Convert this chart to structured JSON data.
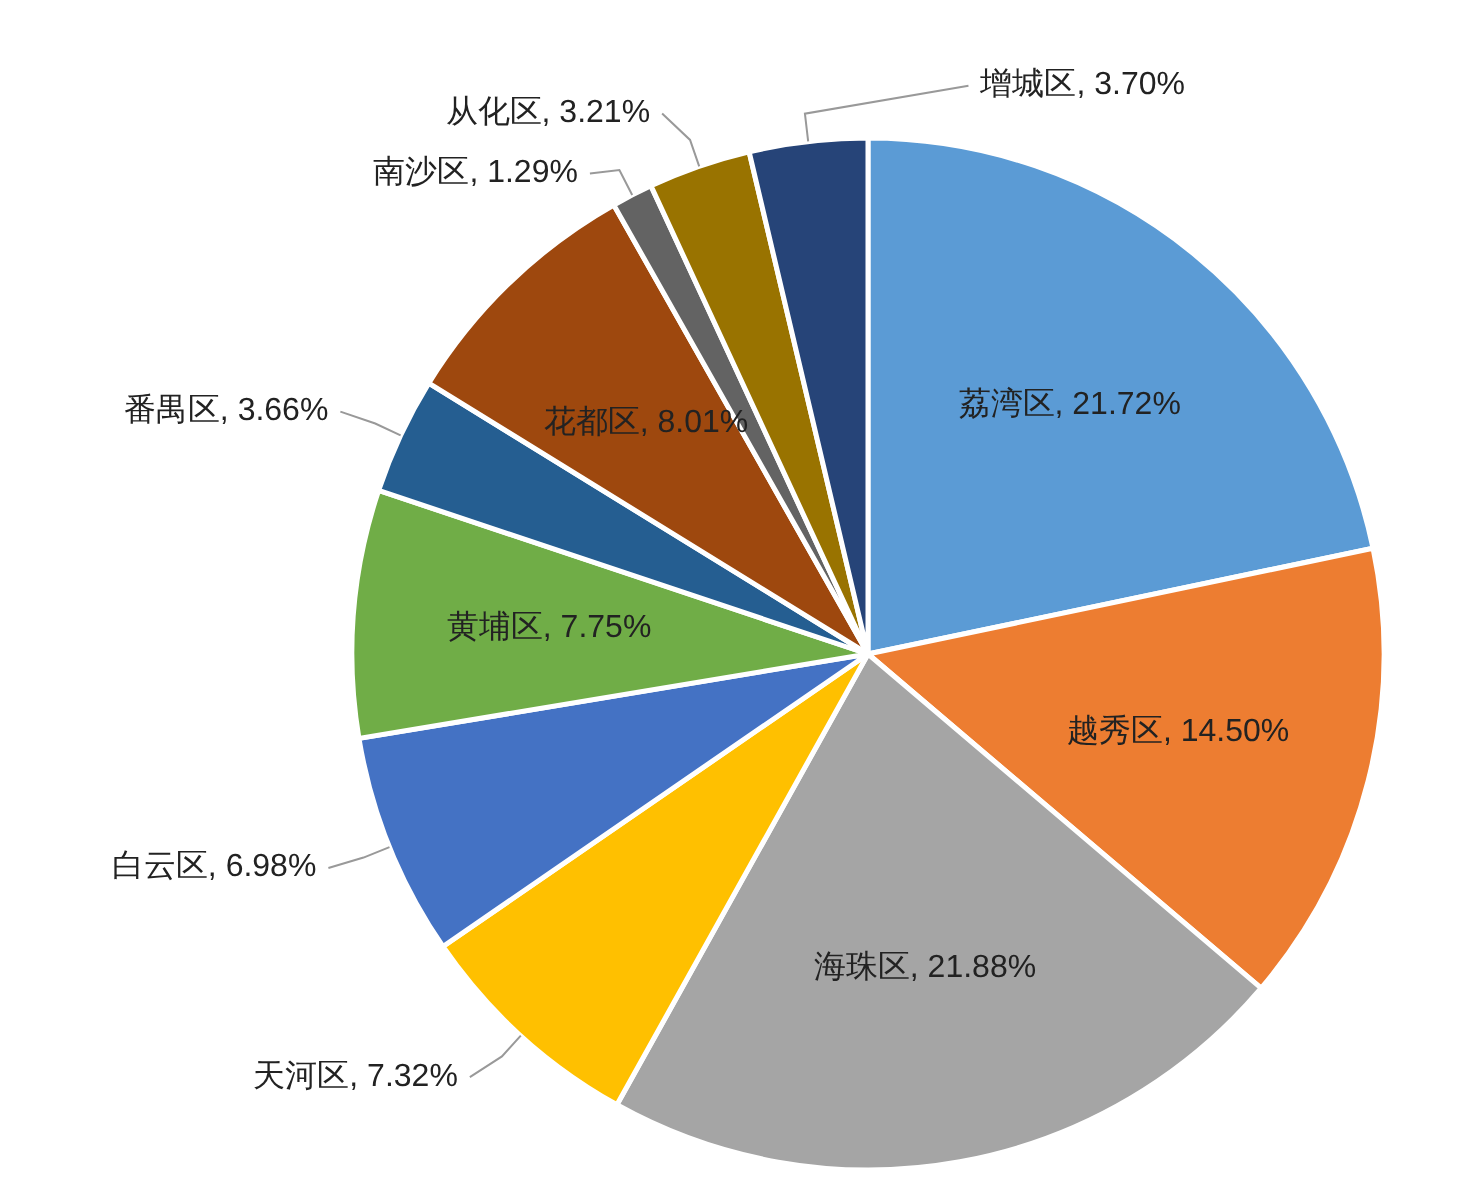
{
  "chart_data": {
    "type": "pie",
    "categories": [
      "荔湾区",
      "越秀区",
      "海珠区",
      "天河区",
      "白云区",
      "黄埔区",
      "番禺区",
      "花都区",
      "南沙区",
      "从化区",
      "增城区"
    ],
    "values": [
      21.72,
      14.5,
      21.88,
      7.32,
      6.98,
      7.75,
      3.66,
      8.01,
      1.29,
      3.21,
      3.7
    ],
    "value_labels": [
      "21.72%",
      "14.50%",
      "21.88%",
      "7.32%",
      "6.98%",
      "7.75%",
      "3.66%",
      "8.01%",
      "1.29%",
      "3.21%",
      "3.70%"
    ],
    "colors": [
      "#5b9bd5",
      "#ed7d31",
      "#a5a5a5",
      "#ffc000",
      "#4472c4",
      "#70ad47",
      "#255e91",
      "#9e480e",
      "#636363",
      "#997300",
      "#264478"
    ]
  }
}
